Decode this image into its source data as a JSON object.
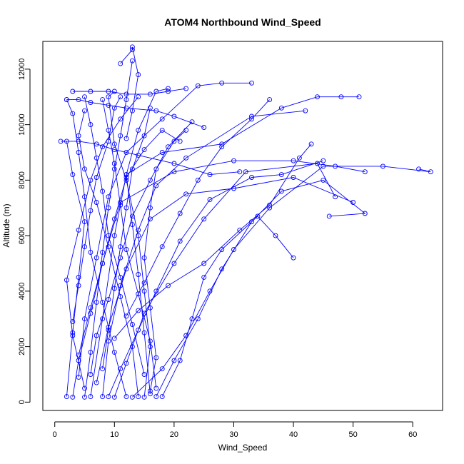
{
  "chart_data": {
    "type": "scatter",
    "title": "ATOM4 Northbound Wind_Speed",
    "xlabel": "Wind_Speed",
    "ylabel": "Altitude (m)",
    "xlim": [
      -2,
      65
    ],
    "ylim": [
      -300,
      13000
    ],
    "xticks": [
      "0",
      "10",
      "20",
      "30",
      "40",
      "50",
      "60"
    ],
    "yticks": [
      "0",
      "2000",
      "4000",
      "6000",
      "8000",
      "10000",
      "12000"
    ],
    "grid": false,
    "legend": "none",
    "color": "#0000ff",
    "marker": "open-circle",
    "series": [
      {
        "points": [
          [
            5,
            180
          ],
          [
            6,
            1800
          ],
          [
            7,
            3600
          ],
          [
            8,
            5400
          ],
          [
            9,
            7000
          ],
          [
            10,
            8400
          ],
          [
            11,
            9600
          ],
          [
            12,
            10900
          ],
          [
            13,
            12300
          ]
        ]
      },
      {
        "points": [
          [
            2,
            200
          ],
          [
            3,
            2500
          ],
          [
            4,
            4500
          ],
          [
            5,
            6500
          ],
          [
            3,
            8200
          ],
          [
            2,
            9400
          ]
        ]
      },
      {
        "points": [
          [
            15,
            180
          ],
          [
            16,
            2000
          ],
          [
            15,
            4000
          ],
          [
            14,
            6000
          ],
          [
            12,
            8000
          ],
          [
            10,
            9300
          ],
          [
            9,
            11000
          ],
          [
            10,
            11200
          ]
        ]
      },
      {
        "points": [
          [
            17,
            200
          ],
          [
            20,
            1500
          ],
          [
            24,
            3000
          ],
          [
            28,
            4800
          ],
          [
            33,
            6500
          ],
          [
            38,
            7600
          ],
          [
            45,
            8000
          ],
          [
            52,
            6800
          ],
          [
            46,
            6700
          ]
        ]
      },
      {
        "points": [
          [
            13,
            180
          ],
          [
            18,
            1200
          ],
          [
            22,
            2400
          ],
          [
            26,
            4000
          ],
          [
            30,
            5500
          ],
          [
            36,
            7000
          ],
          [
            45,
            8500
          ],
          [
            55,
            8500
          ],
          [
            63,
            8300
          ],
          [
            61,
            8400
          ]
        ]
      },
      {
        "points": [
          [
            6,
            200
          ],
          [
            8,
            3000
          ],
          [
            10,
            6000
          ],
          [
            12,
            8200
          ],
          [
            18,
            9000
          ],
          [
            28,
            9300
          ],
          [
            38,
            10600
          ],
          [
            44,
            11000
          ],
          [
            48,
            11000
          ],
          [
            51,
            11000
          ]
        ]
      },
      {
        "points": [
          [
            3,
            180
          ],
          [
            4,
            1500
          ],
          [
            6,
            3200
          ],
          [
            8,
            5000
          ],
          [
            11,
            7200
          ],
          [
            20,
            8300
          ],
          [
            30,
            8700
          ],
          [
            40,
            8700
          ],
          [
            47,
            8500
          ],
          [
            52,
            8300
          ]
        ]
      },
      {
        "points": [
          [
            8,
            200
          ],
          [
            9,
            2200
          ],
          [
            11,
            4200
          ],
          [
            14,
            6200
          ],
          [
            17,
            7800
          ],
          [
            22,
            8800
          ],
          [
            33,
            10300
          ],
          [
            42,
            10500
          ]
        ]
      },
      {
        "points": [
          [
            10,
            180
          ],
          [
            12,
            1400
          ],
          [
            15,
            3200
          ],
          [
            20,
            5000
          ],
          [
            25,
            6600
          ],
          [
            32,
            8300
          ],
          [
            44,
            8600
          ],
          [
            47,
            7400
          ]
        ]
      },
      {
        "points": [
          [
            4,
            900
          ],
          [
            5,
            3000
          ],
          [
            7,
            5200
          ],
          [
            9,
            7400
          ],
          [
            12,
            9000
          ],
          [
            18,
            10200
          ],
          [
            24,
            11400
          ],
          [
            28,
            11500
          ],
          [
            33,
            11500
          ]
        ]
      },
      {
        "points": [
          [
            16,
            300
          ],
          [
            15,
            2500
          ],
          [
            14,
            4600
          ],
          [
            13,
            6400
          ],
          [
            12,
            8200
          ],
          [
            14,
            9800
          ],
          [
            17,
            11200
          ],
          [
            19,
            11300
          ]
        ]
      },
      {
        "points": [
          [
            7,
            700
          ],
          [
            9,
            2700
          ],
          [
            12,
            4800
          ],
          [
            16,
            6600
          ],
          [
            22,
            7500
          ],
          [
            30,
            7700
          ],
          [
            40,
            8100
          ],
          [
            50,
            7200
          ]
        ]
      },
      {
        "points": [
          [
            1,
            9400
          ],
          [
            4,
            9400
          ],
          [
            7,
            9300
          ],
          [
            10,
            9100
          ],
          [
            14,
            8900
          ],
          [
            20,
            8600
          ],
          [
            26,
            8200
          ],
          [
            31,
            8300
          ]
        ]
      },
      {
        "points": [
          [
            2,
            10900
          ],
          [
            4,
            10900
          ],
          [
            6,
            10800
          ],
          [
            9,
            10700
          ],
          [
            12,
            10600
          ],
          [
            17,
            10500
          ],
          [
            20,
            10300
          ],
          [
            25,
            9900
          ]
        ]
      },
      {
        "points": [
          [
            3,
            11200
          ],
          [
            6,
            11200
          ],
          [
            9,
            11200
          ],
          [
            12,
            11100
          ],
          [
            16,
            11100
          ],
          [
            19,
            11200
          ],
          [
            22,
            11300
          ]
        ]
      },
      {
        "points": [
          [
            11,
            12200
          ],
          [
            13,
            12700
          ],
          [
            13,
            12800
          ],
          [
            14,
            11800
          ],
          [
            13,
            10500
          ],
          [
            12,
            9500
          ]
        ]
      },
      {
        "points": [
          [
            18,
            200
          ],
          [
            21,
            1500
          ],
          [
            23,
            3000
          ],
          [
            25,
            4500
          ],
          [
            28,
            5500
          ],
          [
            34,
            6700
          ],
          [
            37,
            6000
          ],
          [
            40,
            5200
          ]
        ]
      },
      {
        "points": [
          [
            12,
            200
          ],
          [
            10,
            1800
          ],
          [
            8,
            3600
          ],
          [
            6,
            5400
          ],
          [
            5,
            7400
          ],
          [
            4,
            9000
          ],
          [
            3,
            10400
          ],
          [
            2,
            10900
          ]
        ]
      },
      {
        "points": [
          [
            14,
            200
          ],
          [
            13,
            2000
          ],
          [
            11,
            3800
          ],
          [
            9,
            5600
          ],
          [
            7,
            7200
          ],
          [
            5,
            8400
          ],
          [
            4,
            9600
          ],
          [
            5,
            10500
          ]
        ]
      },
      {
        "points": [
          [
            9,
            200
          ],
          [
            11,
            1200
          ],
          [
            14,
            2600
          ],
          [
            17,
            4000
          ],
          [
            21,
            5800
          ],
          [
            26,
            7300
          ],
          [
            33,
            8100
          ],
          [
            38,
            8200
          ],
          [
            45,
            8700
          ]
        ]
      },
      {
        "points": [
          [
            5,
            500
          ],
          [
            3,
            2400
          ],
          [
            2,
            4400
          ],
          [
            4,
            6200
          ],
          [
            6,
            8000
          ],
          [
            8,
            9200
          ],
          [
            11,
            10200
          ],
          [
            14,
            11000
          ]
        ]
      },
      {
        "points": [
          [
            16,
            400
          ],
          [
            17,
            1600
          ],
          [
            16,
            3400
          ],
          [
            15,
            5200
          ],
          [
            16,
            7000
          ],
          [
            17,
            8400
          ],
          [
            20,
            9400
          ],
          [
            22,
            9800
          ]
        ]
      },
      {
        "points": [
          [
            6,
            1000
          ],
          [
            7,
            2400
          ],
          [
            9,
            3700
          ],
          [
            11,
            5200
          ],
          [
            13,
            6700
          ],
          [
            16,
            8000
          ],
          [
            19,
            9200
          ],
          [
            23,
            10100
          ]
        ]
      },
      {
        "points": [
          [
            4,
            1700
          ],
          [
            6,
            3400
          ],
          [
            8,
            5000
          ],
          [
            10,
            6600
          ],
          [
            12,
            8100
          ],
          [
            15,
            9100
          ],
          [
            18,
            9800
          ],
          [
            21,
            9400
          ]
        ]
      },
      {
        "points": [
          [
            15,
            1000
          ],
          [
            13,
            2800
          ],
          [
            11,
            4500
          ],
          [
            9,
            6000
          ],
          [
            8,
            7600
          ],
          [
            7,
            8800
          ],
          [
            6,
            10000
          ],
          [
            5,
            11000
          ]
        ]
      },
      {
        "points": [
          [
            10,
            2300
          ],
          [
            14,
            3300
          ],
          [
            19,
            4200
          ],
          [
            25,
            5000
          ],
          [
            31,
            6200
          ],
          [
            36,
            7100
          ],
          [
            41,
            8800
          ],
          [
            43,
            9300
          ]
        ]
      },
      {
        "points": [
          [
            8,
            1200
          ],
          [
            9,
            2600
          ],
          [
            10,
            4100
          ],
          [
            11,
            5600
          ],
          [
            12,
            7000
          ],
          [
            13,
            8400
          ],
          [
            15,
            9600
          ],
          [
            16,
            10600
          ]
        ]
      },
      {
        "points": [
          [
            3,
            2900
          ],
          [
            4,
            4200
          ],
          [
            5,
            5600
          ],
          [
            6,
            6900
          ],
          [
            7,
            8100
          ],
          [
            9,
            9400
          ],
          [
            10,
            10600
          ],
          [
            11,
            11000
          ]
        ]
      },
      {
        "points": [
          [
            12,
            3100
          ],
          [
            15,
            4300
          ],
          [
            18,
            5600
          ],
          [
            21,
            6800
          ],
          [
            24,
            8000
          ],
          [
            28,
            9200
          ],
          [
            33,
            10200
          ],
          [
            36,
            10900
          ]
        ]
      },
      {
        "points": [
          [
            17,
            500
          ],
          [
            16,
            2200
          ],
          [
            14,
            3900
          ],
          [
            12,
            5500
          ],
          [
            11,
            7100
          ],
          [
            10,
            8600
          ],
          [
            9,
            9800
          ],
          [
            8,
            10900
          ]
        ]
      }
    ]
  }
}
